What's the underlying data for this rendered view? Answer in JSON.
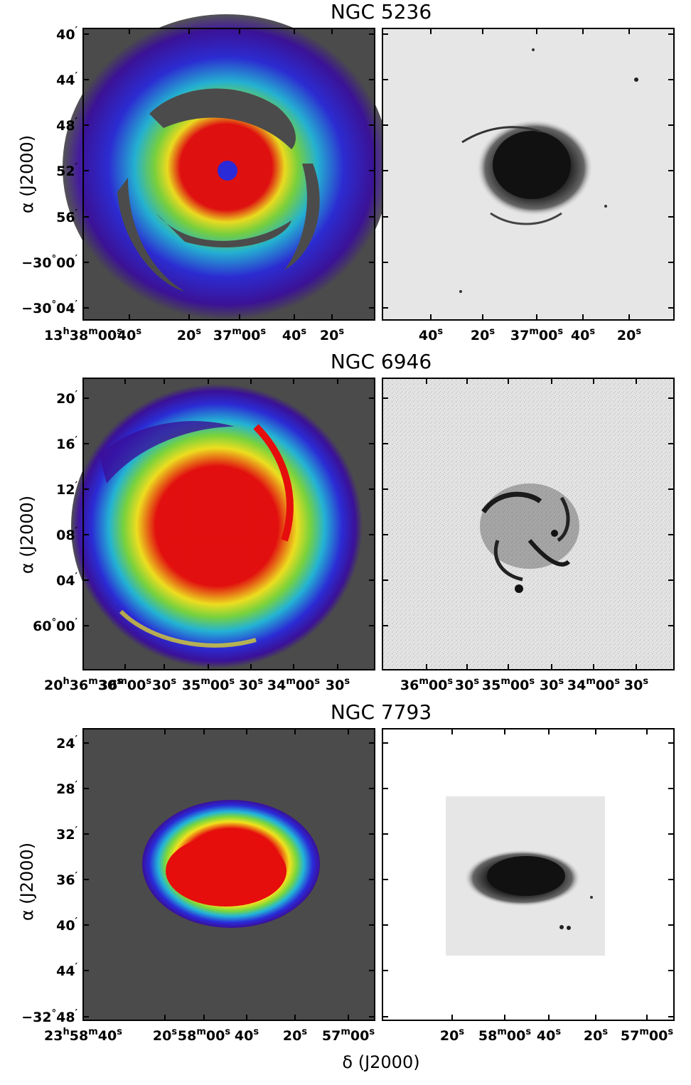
{
  "colors": {
    "map_background": "#4b4b4b",
    "optical_background": "#e6e6e6",
    "low": "#3a0f9a",
    "low_mid": "#2a2ad8",
    "mid": "#22b6d8",
    "mid_high": "#7ad63c",
    "high": "#f2e21e",
    "peak": "#e60d0d"
  },
  "figure": {
    "xlabel": "δ (J2000)",
    "ylabel": "α (J2000)"
  },
  "panels": [
    {
      "title": "NGC 5236",
      "y_ticks": [
        {
          "main": "40",
          "sup": "′"
        },
        {
          "main": "44",
          "sup": "′"
        },
        {
          "main": "48",
          "sup": "′"
        },
        {
          "main": "52",
          "sup": "′"
        },
        {
          "main": "56",
          "sup": "′"
        },
        {
          "main": "−30",
          "sup": "°",
          "tail": "00",
          "sup2": "′"
        },
        {
          "main": "−30",
          "sup": "°",
          "tail": "04",
          "sup2": "′"
        }
      ],
      "x_ticks_left": [
        {
          "parts": [
            [
              "13",
              ""
            ],
            [
              "h",
              "sup"
            ],
            [
              "38",
              ""
            ],
            [
              "m",
              "sup"
            ],
            [
              "00",
              ""
            ],
            [
              "s",
              "sup"
            ]
          ]
        },
        {
          "parts": [
            [
              "40",
              ""
            ],
            [
              "s",
              "sup"
            ]
          ]
        },
        {
          "parts": [
            [
              "20",
              ""
            ],
            [
              "s",
              "sup"
            ]
          ]
        },
        {
          "parts": [
            [
              "37",
              ""
            ],
            [
              "m",
              "sup"
            ],
            [
              "00",
              ""
            ],
            [
              "s",
              "sup"
            ]
          ]
        },
        {
          "parts": [
            [
              "40",
              ""
            ],
            [
              "s",
              "sup"
            ]
          ]
        },
        {
          "parts": [
            [
              "20",
              ""
            ],
            [
              "s",
              "sup"
            ]
          ]
        }
      ],
      "x_ticks_right": [
        {
          "parts": [
            [
              "40",
              ""
            ],
            [
              "s",
              "sup"
            ]
          ]
        },
        {
          "parts": [
            [
              "20",
              ""
            ],
            [
              "s",
              "sup"
            ]
          ]
        },
        {
          "parts": [
            [
              "37",
              ""
            ],
            [
              "m",
              "sup"
            ],
            [
              "00",
              ""
            ],
            [
              "s",
              "sup"
            ]
          ]
        },
        {
          "parts": [
            [
              "40",
              ""
            ],
            [
              "s",
              "sup"
            ]
          ]
        },
        {
          "parts": [
            [
              "20",
              ""
            ],
            [
              "s",
              "sup"
            ]
          ]
        }
      ]
    },
    {
      "title": "NGC 6946",
      "y_ticks": [
        {
          "main": "20",
          "sup": "′"
        },
        {
          "main": "16",
          "sup": "′"
        },
        {
          "main": "12",
          "sup": "′"
        },
        {
          "main": "08",
          "sup": "′"
        },
        {
          "main": "04",
          "sup": "′"
        },
        {
          "main": "60",
          "sup": "°",
          "tail": "00",
          "sup2": "′"
        }
      ],
      "x_ticks_left": [
        {
          "parts": [
            [
              "20",
              ""
            ],
            [
              "h",
              "sup"
            ],
            [
              "36",
              ""
            ],
            [
              "m",
              "sup"
            ],
            [
              "30",
              ""
            ],
            [
              "s",
              "sup"
            ]
          ]
        },
        {
          "parts": [
            [
              "36",
              ""
            ],
            [
              "m",
              "sup"
            ],
            [
              "00",
              ""
            ],
            [
              "s",
              "sup"
            ]
          ]
        },
        {
          "parts": [
            [
              "30",
              ""
            ],
            [
              "s",
              "sup"
            ]
          ]
        },
        {
          "parts": [
            [
              "35",
              ""
            ],
            [
              "m",
              "sup"
            ],
            [
              "00",
              ""
            ],
            [
              "s",
              "sup"
            ]
          ]
        },
        {
          "parts": [
            [
              "30",
              ""
            ],
            [
              "s",
              "sup"
            ]
          ]
        },
        {
          "parts": [
            [
              "34",
              ""
            ],
            [
              "m",
              "sup"
            ],
            [
              "00",
              ""
            ],
            [
              "s",
              "sup"
            ]
          ]
        },
        {
          "parts": [
            [
              "30",
              ""
            ],
            [
              "s",
              "sup"
            ]
          ]
        }
      ],
      "x_ticks_right": [
        {
          "parts": [
            [
              "36",
              ""
            ],
            [
              "m",
              "sup"
            ],
            [
              "00",
              ""
            ],
            [
              "s",
              "sup"
            ]
          ]
        },
        {
          "parts": [
            [
              "30",
              ""
            ],
            [
              "s",
              "sup"
            ]
          ]
        },
        {
          "parts": [
            [
              "35",
              ""
            ],
            [
              "m",
              "sup"
            ],
            [
              "00",
              ""
            ],
            [
              "s",
              "sup"
            ]
          ]
        },
        {
          "parts": [
            [
              "30",
              ""
            ],
            [
              "s",
              "sup"
            ]
          ]
        },
        {
          "parts": [
            [
              "34",
              ""
            ],
            [
              "m",
              "sup"
            ],
            [
              "00",
              ""
            ],
            [
              "s",
              "sup"
            ]
          ]
        },
        {
          "parts": [
            [
              "30",
              ""
            ],
            [
              "s",
              "sup"
            ]
          ]
        }
      ]
    },
    {
      "title": "NGC 7793",
      "y_ticks": [
        {
          "main": "24",
          "sup": "′"
        },
        {
          "main": "28",
          "sup": "′"
        },
        {
          "main": "32",
          "sup": "′"
        },
        {
          "main": "36",
          "sup": "′"
        },
        {
          "main": "40",
          "sup": "′"
        },
        {
          "main": "44",
          "sup": "′"
        },
        {
          "main": "−32",
          "sup": "°",
          "tail": "48",
          "sup2": "′"
        }
      ],
      "x_ticks_left": [
        {
          "parts": [
            [
              "23",
              ""
            ],
            [
              "h",
              "sup"
            ],
            [
              "58",
              ""
            ],
            [
              "m",
              "sup"
            ],
            [
              "40",
              ""
            ],
            [
              "s",
              "sup"
            ]
          ]
        },
        {
          "parts": [
            [
              "20",
              ""
            ],
            [
              "s",
              "sup"
            ]
          ]
        },
        {
          "parts": [
            [
              "58",
              ""
            ],
            [
              "m",
              "sup"
            ],
            [
              "00",
              ""
            ],
            [
              "s",
              "sup"
            ]
          ]
        },
        {
          "parts": [
            [
              "40",
              ""
            ],
            [
              "s",
              "sup"
            ]
          ]
        },
        {
          "parts": [
            [
              "20",
              ""
            ],
            [
              "s",
              "sup"
            ]
          ]
        },
        {
          "parts": [
            [
              "57",
              ""
            ],
            [
              "m",
              "sup"
            ],
            [
              "00",
              ""
            ],
            [
              "s",
              "sup"
            ]
          ]
        }
      ],
      "x_ticks_right": [
        {
          "parts": [
            [
              "20",
              ""
            ],
            [
              "s",
              "sup"
            ]
          ]
        },
        {
          "parts": [
            [
              "58",
              ""
            ],
            [
              "m",
              "sup"
            ],
            [
              "00",
              ""
            ],
            [
              "s",
              "sup"
            ]
          ]
        },
        {
          "parts": [
            [
              "40",
              ""
            ],
            [
              "s",
              "sup"
            ]
          ]
        },
        {
          "parts": [
            [
              "20",
              ""
            ],
            [
              "s",
              "sup"
            ]
          ]
        },
        {
          "parts": [
            [
              "57",
              ""
            ],
            [
              "m",
              "sup"
            ],
            [
              "00",
              ""
            ],
            [
              "s",
              "sup"
            ]
          ]
        }
      ]
    }
  ]
}
